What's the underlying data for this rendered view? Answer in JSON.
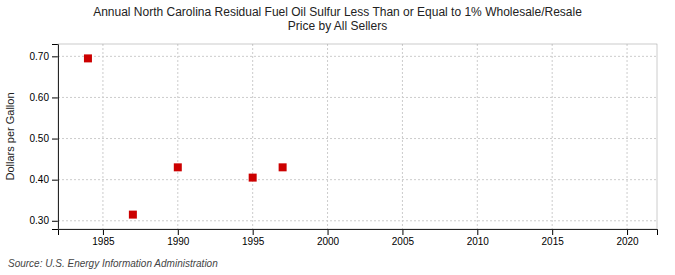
{
  "chart_data": {
    "type": "scatter",
    "title": "Annual North Carolina Residual Fuel Oil Sulfur Less Than or Equal to 1% Wholesale/Resale\nPrice by All Sellers",
    "ylabel": "Dollars per Gallon",
    "source": "Source: U.S. Energy Information Administration",
    "x": [
      1984,
      1987,
      1990,
      1995,
      1997
    ],
    "values": [
      0.695,
      0.315,
      0.43,
      0.405,
      0.43
    ],
    "color": "#cc0000",
    "marker": "square",
    "xlim": [
      1982,
      2022
    ],
    "ylim": [
      0.28,
      0.73
    ],
    "xticks": [
      1985,
      1990,
      1995,
      2000,
      2005,
      2010,
      2015,
      2020
    ],
    "yticks": [
      {
        "value": 0.3,
        "label": "0.30"
      },
      {
        "value": 0.4,
        "label": "0.40"
      },
      {
        "value": 0.5,
        "label": "0.50"
      },
      {
        "value": 0.6,
        "label": "0.60"
      },
      {
        "value": 0.7,
        "label": "0.70"
      }
    ],
    "grid": true
  }
}
